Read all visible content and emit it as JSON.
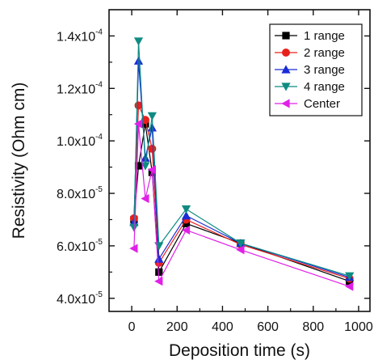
{
  "chart_data": {
    "type": "line",
    "title": "",
    "xlabel": "Deposition time (s)",
    "ylabel": "Resistivity (Ohm cm)",
    "xlim": [
      -100,
      1050
    ],
    "ylim": [
      3.5e-05,
      0.00015
    ],
    "xticks": [
      0,
      200,
      400,
      600,
      800,
      1000
    ],
    "xtick_labels": [
      "0",
      "200",
      "400",
      "600",
      "800",
      "1000"
    ],
    "yticks": [
      4e-05,
      6e-05,
      8e-05,
      0.0001,
      0.00012,
      0.00014
    ],
    "ytick_labels": [
      {
        "mantissa": "4.0x10",
        "exp": "-5"
      },
      {
        "mantissa": "6.0x10",
        "exp": "-5"
      },
      {
        "mantissa": "8.0x10",
        "exp": "-5"
      },
      {
        "mantissa": "1.0x10",
        "exp": "-4"
      },
      {
        "mantissa": "1.2x10",
        "exp": "-4"
      },
      {
        "mantissa": "1.4x10",
        "exp": "-4"
      }
    ],
    "x": [
      10,
      30,
      60,
      90,
      120,
      240,
      480,
      960
    ],
    "series": [
      {
        "name": "1 range",
        "color": "#000000",
        "marker": "square",
        "values": [
          7e-05,
          9.05e-05,
          0.0001065,
          8.8e-05,
          5e-05,
          6.85e-05,
          6.1e-05,
          4.65e-05
        ]
      },
      {
        "name": "2 range",
        "color": "#e8201c",
        "marker": "circle",
        "values": [
          7.05e-05,
          0.0001135,
          0.000108,
          9.7e-05,
          5.35e-05,
          7e-05,
          6.05e-05,
          4.75e-05
        ]
      },
      {
        "name": "3 range",
        "color": "#1a2bd6",
        "marker": "triangle-up",
        "values": [
          6.9e-05,
          0.0001305,
          9.35e-05,
          0.000105,
          5.5e-05,
          7.15e-05,
          6.1e-05,
          4.8e-05
        ]
      },
      {
        "name": "4 range",
        "color": "#0f8b82",
        "marker": "triangle-down",
        "values": [
          6.7e-05,
          0.000138,
          9.05e-05,
          0.0001095,
          6e-05,
          7.4e-05,
          6.1e-05,
          4.85e-05
        ]
      },
      {
        "name": "Center",
        "color": "#e020e8",
        "marker": "triangle-left",
        "values": [
          5.9e-05,
          0.0001065,
          7.8e-05,
          8.9e-05,
          4.65e-05,
          6.6e-05,
          5.85e-05,
          4.45e-05
        ]
      }
    ],
    "legend_position": "top-right",
    "grid": false
  }
}
